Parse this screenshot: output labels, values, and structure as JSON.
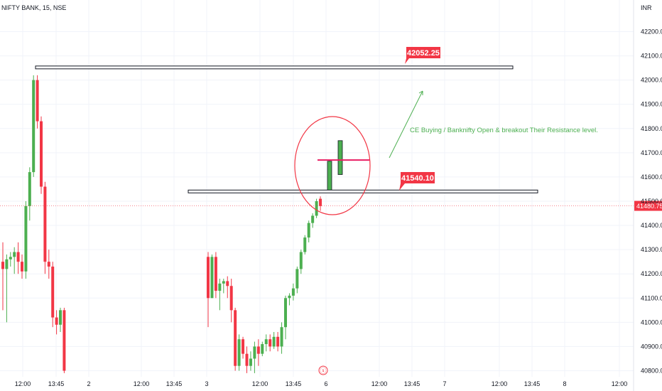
{
  "chart_data": {
    "type": "candlestick",
    "title": "NIFTY BANK, 15, NSE",
    "currency": "INR",
    "colors": {
      "up": "#4caf50",
      "down": "#f23645",
      "accent": "#f23645",
      "grid": "#f0f3fa"
    },
    "y_axis": {
      "ylim": [
        40790,
        42270
      ],
      "ticks": [
        40800,
        40900,
        41000,
        41100,
        41200,
        41300,
        41400,
        41500,
        41600,
        41700,
        41800,
        41900,
        42000,
        42100,
        42200
      ],
      "tick_labels": [
        "40800.00",
        "40900.00",
        "41000.00",
        "41100.00",
        "41200.00",
        "41300.00",
        "41400.00",
        "41500.00",
        "41600.00",
        "41700.00",
        "41800.00",
        "41900.00",
        "42000.00",
        "42100.00",
        "42200.00"
      ]
    },
    "x_axis": {
      "labels": [
        "12:00",
        "13:45",
        "2",
        "12:00",
        "13:45",
        "3",
        "12:00",
        "13:45",
        "6",
        "12:00",
        "13:45",
        "7",
        "12:00",
        "13:45",
        "8",
        "12:00"
      ]
    },
    "last_price": {
      "value": 41480.75,
      "label": "41480.75"
    },
    "candles": [
      {
        "o": 41250,
        "h": 41330,
        "l": 41050,
        "c": 41220
      },
      {
        "o": 41220,
        "h": 41280,
        "l": 41000,
        "c": 41260
      },
      {
        "o": 41260,
        "h": 41290,
        "l": 41230,
        "c": 41270
      },
      {
        "o": 41270,
        "h": 41310,
        "l": 41200,
        "c": 41290
      },
      {
        "o": 41290,
        "h": 41330,
        "l": 41200,
        "c": 41250
      },
      {
        "o": 41250,
        "h": 41280,
        "l": 41180,
        "c": 41210
      },
      {
        "o": 41210,
        "h": 41500,
        "l": 41180,
        "c": 41480
      },
      {
        "o": 41480,
        "h": 41640,
        "l": 41420,
        "c": 41620
      },
      {
        "o": 41620,
        "h": 42020,
        "l": 41600,
        "c": 42000
      },
      {
        "o": 42000,
        "h": 42020,
        "l": 41800,
        "c": 41830
      },
      {
        "o": 41830,
        "h": 41850,
        "l": 41530,
        "c": 41560
      },
      {
        "o": 41560,
        "h": 41580,
        "l": 41200,
        "c": 41250
      },
      {
        "o": 41250,
        "h": 41300,
        "l": 41180,
        "c": 41230
      },
      {
        "o": 41230,
        "h": 41250,
        "l": 40980,
        "c": 41020
      },
      {
        "o": 41020,
        "h": 41050,
        "l": 40950,
        "c": 40990
      },
      {
        "o": 40990,
        "h": 41060,
        "l": 40960,
        "c": 41050
      },
      {
        "o": 41050,
        "h": 41060,
        "l": 40790,
        "c": 40800
      },
      {
        "o": 41270,
        "h": 41290,
        "l": 40980,
        "c": 41100
      },
      {
        "o": 41100,
        "h": 41280,
        "l": 41100,
        "c": 41270
      },
      {
        "o": 41270,
        "h": 41290,
        "l": 41100,
        "c": 41130
      },
      {
        "o": 41130,
        "h": 41180,
        "l": 41050,
        "c": 41160
      },
      {
        "o": 41160,
        "h": 41180,
        "l": 41120,
        "c": 41170
      },
      {
        "o": 41170,
        "h": 41190,
        "l": 41100,
        "c": 41150
      },
      {
        "o": 41150,
        "h": 41180,
        "l": 41000,
        "c": 41050
      },
      {
        "o": 41050,
        "h": 41060,
        "l": 40800,
        "c": 40820
      },
      {
        "o": 40820,
        "h": 40950,
        "l": 40800,
        "c": 40930
      },
      {
        "o": 40930,
        "h": 40940,
        "l": 40850,
        "c": 40870
      },
      {
        "o": 40870,
        "h": 40900,
        "l": 40790,
        "c": 40820
      },
      {
        "o": 40820,
        "h": 40880,
        "l": 40800,
        "c": 40850
      },
      {
        "o": 40850,
        "h": 40920,
        "l": 40790,
        "c": 40900
      },
      {
        "o": 40900,
        "h": 40930,
        "l": 40820,
        "c": 40870
      },
      {
        "o": 40870,
        "h": 40920,
        "l": 40860,
        "c": 40910
      },
      {
        "o": 40910,
        "h": 40950,
        "l": 40880,
        "c": 40930
      },
      {
        "o": 40930,
        "h": 40950,
        "l": 40880,
        "c": 40900
      },
      {
        "o": 40900,
        "h": 40960,
        "l": 40890,
        "c": 40940
      },
      {
        "o": 40940,
        "h": 40960,
        "l": 40880,
        "c": 40900
      },
      {
        "o": 40900,
        "h": 41000,
        "l": 40870,
        "c": 40980
      },
      {
        "o": 40980,
        "h": 41110,
        "l": 40930,
        "c": 41100
      },
      {
        "o": 41100,
        "h": 41120,
        "l": 41070,
        "c": 41110
      },
      {
        "o": 41110,
        "h": 41160,
        "l": 41090,
        "c": 41140
      },
      {
        "o": 41140,
        "h": 41230,
        "l": 41120,
        "c": 41220
      },
      {
        "o": 41220,
        "h": 41300,
        "l": 41200,
        "c": 41290
      },
      {
        "o": 41290,
        "h": 41360,
        "l": 41280,
        "c": 41350
      },
      {
        "o": 41350,
        "h": 41420,
        "l": 41330,
        "c": 41410
      },
      {
        "o": 41410,
        "h": 41450,
        "l": 41390,
        "c": 41440
      },
      {
        "o": 41440,
        "h": 41510,
        "l": 41430,
        "c": 41500
      },
      {
        "o": 41510,
        "h": 41520,
        "l": 41460,
        "c": 41480
      },
      {
        "o": 41540,
        "h": 41670,
        "l": 41535,
        "c": 41665
      },
      {
        "o": 41610,
        "h": 41750,
        "l": 41610,
        "c": 41750
      }
    ],
    "annotations": {
      "resistance_levels": [
        {
          "value": 42052.25,
          "label": "42052.25"
        },
        {
          "value": 41540.1,
          "label": "41540.10"
        }
      ],
      "breakout_line": {
        "value": 41670
      },
      "text": "CE Buying / Banknifty Open & breakout Their Resistance level."
    }
  }
}
